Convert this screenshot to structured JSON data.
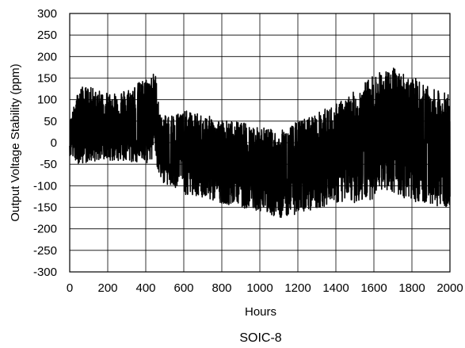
{
  "chart_data": {
    "type": "line",
    "title": "",
    "caption": "SOIC-8",
    "xlabel": "Hours",
    "ylabel": "Output Voltage Stability (ppm)",
    "xlim": [
      0,
      2000
    ],
    "ylim": [
      -300,
      300
    ],
    "x_ticks": [
      0,
      200,
      400,
      600,
      800,
      1000,
      1200,
      1400,
      1600,
      1800,
      2000
    ],
    "y_ticks": [
      300,
      250,
      200,
      150,
      100,
      50,
      0,
      -50,
      -100,
      -150,
      -200,
      -250,
      -300
    ],
    "grid": true,
    "line_color": "#000000",
    "series": [
      {
        "name": "",
        "description_points": "noise band envelope: x hours, upper and lower ppm",
        "x": [
          0,
          50,
          100,
          200,
          300,
          400,
          450,
          480,
          600,
          800,
          1000,
          1100,
          1200,
          1400,
          1500,
          1600,
          1700,
          1800,
          1900,
          2000
        ],
        "upper": [
          50,
          130,
          130,
          115,
          125,
          150,
          165,
          60,
          75,
          55,
          40,
          25,
          50,
          90,
          120,
          160,
          175,
          155,
          125,
          115
        ],
        "lower": [
          -30,
          -50,
          -45,
          -40,
          -45,
          -50,
          -40,
          -90,
          -120,
          -140,
          -160,
          -175,
          -165,
          -140,
          -140,
          -130,
          -120,
          -135,
          -145,
          -150
        ],
        "center": [
          20,
          45,
          40,
          35,
          35,
          40,
          50,
          -20,
          -25,
          -45,
          -60,
          -75,
          -60,
          -30,
          -10,
          25,
          35,
          15,
          -10,
          -20
        ]
      }
    ]
  }
}
